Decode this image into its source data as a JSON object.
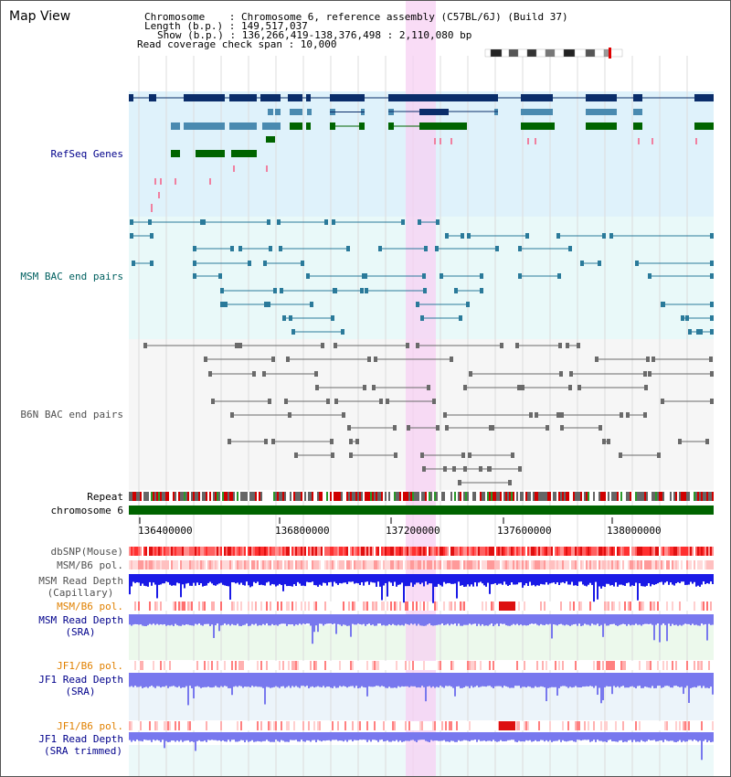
{
  "page_title": "Map View",
  "info": {
    "chromosome": "Chromosome    : Chromosome 6, reference assembly (C57BL/6J) (Build 37)",
    "length": "Length (b.p.) : 149,517,037",
    "show": "Show (b.p.) : 136,266,419-138,376,498 : 2,110,080 bp",
    "coverage": "Read coverage check span : 10,000"
  },
  "tracks": {
    "refseq": "RefSeq Genes",
    "msm_bac": "MSM BAC end pairs",
    "b6n_bac": "B6N BAC end pairs",
    "repeat": "Repeat",
    "chromosome": "chromosome 6",
    "dbsnp": "dbSNP(Mouse)",
    "msm_b6_pol": "MSM/B6 pol.",
    "msm_depth_cap_1": "MSM Read Depth",
    "msm_depth_cap_2": "(Capillary)",
    "msm_b6_pol_2": "MSM/B6 pol.",
    "msm_depth_sra_1": "MSM Read Depth",
    "msm_depth_sra_2": "(SRA)",
    "jf1_b6_pol": "JF1/B6 pol.",
    "jf1_depth_1": "JF1 Read Depth",
    "jf1_depth_2": "(SRA)",
    "jf1_b6_pol_2": "JF1/B6 pol.",
    "jf1_trim_1": "JF1 Read Depth",
    "jf1_trim_2": "(SRA trimmed)"
  },
  "axis_ticks": [
    "136400000",
    "136800000",
    "137200000",
    "137600000",
    "138000000"
  ],
  "colors": {
    "refseq_bg": "#dff2fb",
    "bac_bg": "#e9f9f9",
    "label_navy": "#00008b",
    "label_teal": "#006060",
    "label_gray": "#505050",
    "label_orange": "#e08000",
    "highlight": "#f7d0f3",
    "gene_navy": "#0a2d6a",
    "gene_blue": "#4a8ab0",
    "gene_green": "#006400",
    "depth_dark": "#1a1ae6",
    "depth_light": "#7878ee"
  }
}
